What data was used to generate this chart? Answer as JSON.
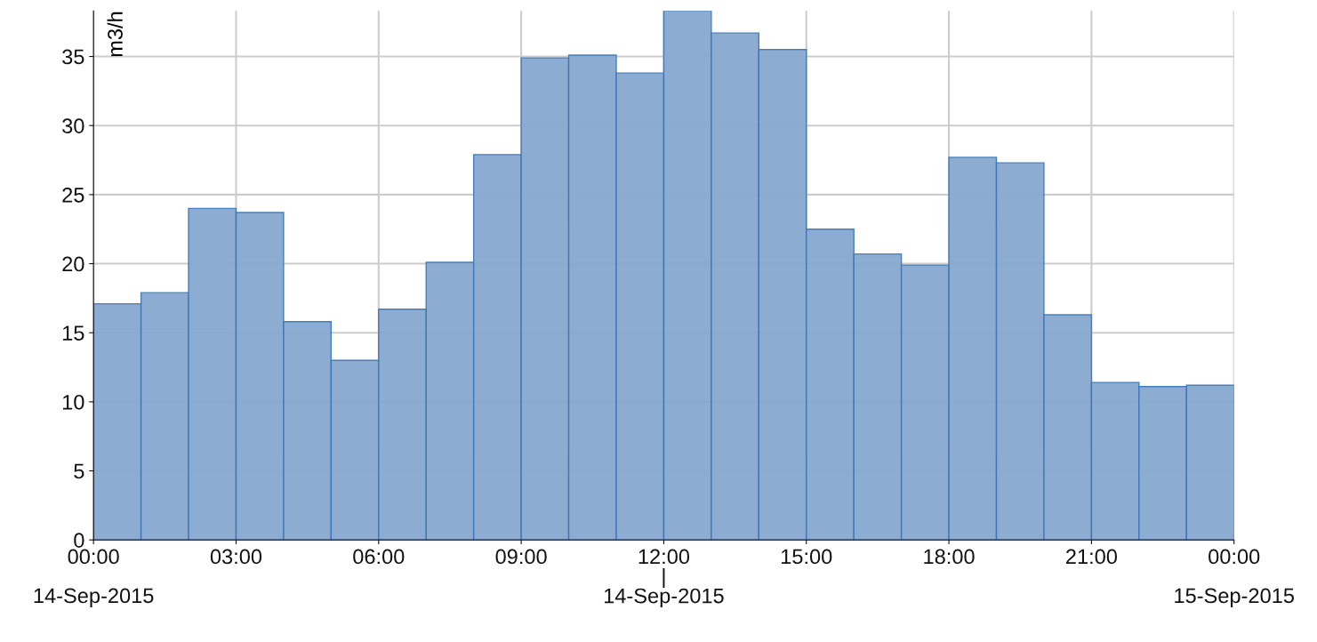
{
  "chart_data": {
    "type": "histogram",
    "ylabel": "m3/h",
    "color": "#86a8cf",
    "bins": [
      0,
      1,
      2,
      3,
      4,
      5,
      6,
      7,
      8,
      9,
      10,
      11,
      12,
      13,
      14,
      15,
      16,
      17,
      18,
      19,
      20,
      21,
      22,
      23,
      24
    ],
    "values": [
      17.1,
      17.9,
      24.0,
      23.7,
      15.8,
      13.0,
      16.7,
      20.1,
      27.9,
      34.9,
      35.1,
      33.8,
      38.3,
      36.7,
      35.5,
      22.5,
      20.7,
      19.9,
      27.7,
      27.3,
      16.3,
      11.4,
      11.1,
      11.2
    ],
    "xlim": [
      0,
      24
    ],
    "ylim": [
      0,
      38.3
    ],
    "xticks": [
      {
        "value": 0,
        "label": "00:00\n\n14-Sep-2015"
      },
      {
        "value": 3,
        "label": "03:00"
      },
      {
        "value": 6,
        "label": "06:00"
      },
      {
        "value": 9,
        "label": "09:00"
      },
      {
        "value": 12,
        "label": "12:00\n|\n14-Sep-2015"
      },
      {
        "value": 15,
        "label": "15:00"
      },
      {
        "value": 18,
        "label": "18:00"
      },
      {
        "value": 21,
        "label": "21:00"
      },
      {
        "value": 24,
        "label": "00:00\n\n15-Sep-2015"
      }
    ],
    "yticks": [
      0,
      5,
      10,
      15,
      20,
      25,
      30,
      35
    ],
    "grid": true
  }
}
